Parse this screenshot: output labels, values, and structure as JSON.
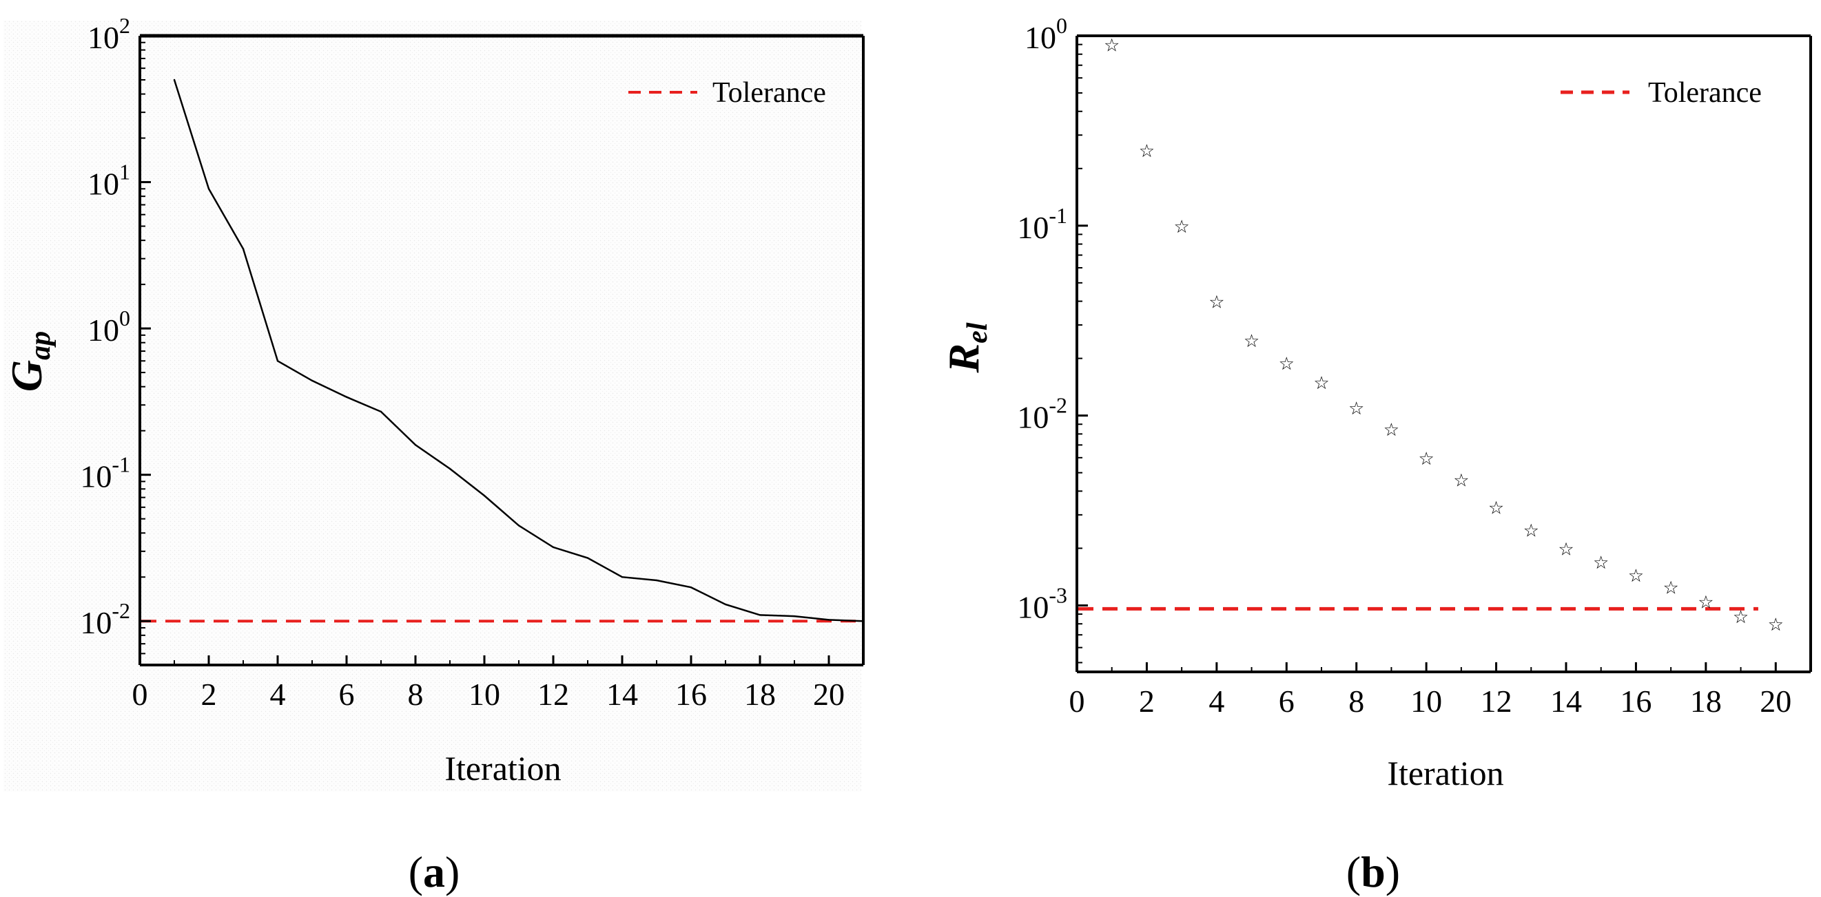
{
  "chart_data": [
    {
      "type": "line",
      "panel_label": {
        "open": "(",
        "letter": "a",
        "close": ")"
      },
      "title": "",
      "xlabel": "Iteration",
      "ylabel": {
        "main": "G",
        "sub": "ap"
      },
      "yscale": "log",
      "xlim": [
        0,
        21
      ],
      "ylim_exp": [
        -2.3,
        2
      ],
      "x_ticks": [
        0,
        2,
        4,
        6,
        8,
        10,
        12,
        14,
        16,
        18,
        20
      ],
      "y_ticks": [
        {
          "base": "10",
          "exp": "2",
          "value": 100
        },
        {
          "base": "10",
          "exp": "1",
          "value": 10
        },
        {
          "base": "10",
          "exp": "0",
          "value": 1
        },
        {
          "base": "10",
          "exp": "-1",
          "value": 0.1
        },
        {
          "base": "10",
          "exp": "-2",
          "value": 0.01
        }
      ],
      "series": [
        {
          "name": "Gap",
          "color": "#000000",
          "x": [
            1,
            2,
            3,
            4,
            5,
            6,
            7,
            8,
            9,
            10,
            11,
            12,
            13,
            14,
            15,
            16,
            17,
            18,
            19,
            20,
            21
          ],
          "values": [
            50,
            9,
            3.5,
            0.6,
            0.44,
            0.34,
            0.27,
            0.16,
            0.11,
            0.072,
            0.045,
            0.032,
            0.027,
            0.02,
            0.019,
            0.017,
            0.013,
            0.011,
            0.0108,
            0.0102,
            0.01
          ]
        }
      ],
      "tolerance": {
        "label": "Tolerance",
        "value": 0.01,
        "x_range": [
          0,
          21
        ],
        "color": "#e8201e"
      },
      "legend_position": "top-right"
    },
    {
      "type": "scatter",
      "panel_label": {
        "open": "(",
        "letter": "b",
        "close": ")"
      },
      "title": "",
      "xlabel": "Iteration",
      "ylabel": {
        "main": "R",
        "sub": "el"
      },
      "yscale": "log",
      "xlim": [
        0,
        21
      ],
      "ylim_exp": [
        -3.35,
        0
      ],
      "x_ticks": [
        0,
        2,
        4,
        6,
        8,
        10,
        12,
        14,
        16,
        18,
        20
      ],
      "y_ticks": [
        {
          "base": "10",
          "exp": "0",
          "value": 1
        },
        {
          "base": "10",
          "exp": "-1",
          "value": 0.1
        },
        {
          "base": "10",
          "exp": "-2",
          "value": 0.01
        },
        {
          "base": "10",
          "exp": "-3",
          "value": 0.001
        }
      ],
      "series": [
        {
          "name": "Rel",
          "marker": "☆",
          "color": "#000000",
          "x": [
            1,
            2,
            3,
            4,
            5,
            6,
            7,
            8,
            9,
            10,
            11,
            12,
            13,
            14,
            15,
            16,
            17,
            18,
            19,
            20
          ],
          "values": [
            0.9,
            0.25,
            0.1,
            0.04,
            0.025,
            0.019,
            0.015,
            0.011,
            0.0085,
            0.006,
            0.0046,
            0.0033,
            0.0025,
            0.002,
            0.0017,
            0.00145,
            0.00125,
            0.00105,
            0.00088,
            0.0008
          ]
        }
      ],
      "tolerance": {
        "label": "Tolerance",
        "value": 0.00096,
        "x_range": [
          0,
          19.5
        ],
        "color": "#e8201e"
      },
      "legend_position": "top-right"
    }
  ]
}
